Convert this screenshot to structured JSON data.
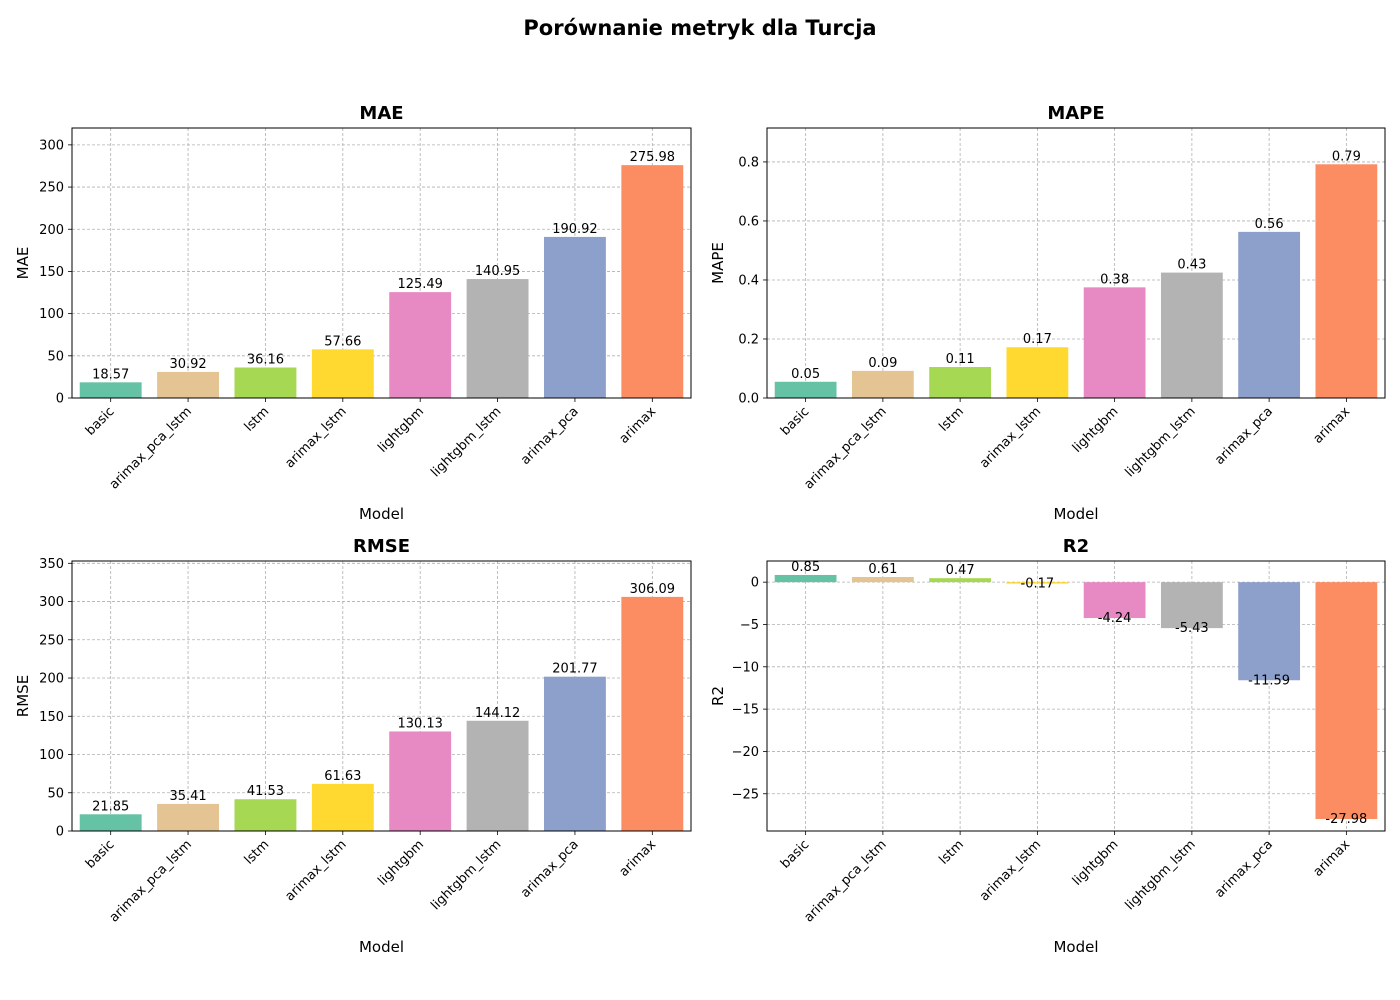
{
  "title": "Porównanie metryk dla Turcja",
  "colors": [
    "#66c2a5",
    "#e5c494",
    "#a6d854",
    "#ffd92f",
    "#e78ac3",
    "#b3b3b3",
    "#8da0cb",
    "#fc8d62"
  ],
  "chart_data": [
    {
      "type": "bar",
      "title": "MAE",
      "xlabel": "Model",
      "ylabel": "MAE",
      "categories": [
        "basic",
        "arimax_pca_lstm",
        "lstm",
        "arimax_lstm",
        "lightgbm",
        "lightgbm_lstm",
        "arimax_pca",
        "arimax"
      ],
      "values": [
        18.57,
        30.92,
        36.16,
        57.66,
        125.49,
        140.95,
        190.92,
        275.98
      ],
      "labels": [
        "18.57",
        "30.92",
        "36.16",
        "57.66",
        "125.49",
        "140.95",
        "190.92",
        "275.98"
      ],
      "ylim": [
        0,
        320
      ],
      "yticks": [
        0,
        50,
        100,
        150,
        200,
        250,
        300
      ],
      "ytick_labels": [
        "0",
        "50",
        "100",
        "150",
        "200",
        "250",
        "300"
      ],
      "grid": true
    },
    {
      "type": "bar",
      "title": "MAPE",
      "xlabel": "Model",
      "ylabel": "MAPE",
      "categories": [
        "basic",
        "arimax_pca_lstm",
        "lstm",
        "arimax_lstm",
        "lightgbm",
        "lightgbm_lstm",
        "arimax_pca",
        "arimax"
      ],
      "values": [
        0.055,
        0.092,
        0.105,
        0.172,
        0.375,
        0.425,
        0.563,
        0.792
      ],
      "labels": [
        "0.05",
        "0.09",
        "0.11",
        "0.17",
        "0.38",
        "0.43",
        "0.56",
        "0.79"
      ],
      "ylim": [
        0,
        0.915
      ],
      "yticks": [
        0,
        0.2,
        0.4,
        0.6,
        0.8
      ],
      "ytick_labels": [
        "0.0",
        "0.2",
        "0.4",
        "0.6",
        "0.8"
      ],
      "grid": true
    },
    {
      "type": "bar",
      "title": "RMSE",
      "xlabel": "Model",
      "ylabel": "RMSE",
      "categories": [
        "basic",
        "arimax_pca_lstm",
        "lstm",
        "arimax_lstm",
        "lightgbm",
        "lightgbm_lstm",
        "arimax_pca",
        "arimax"
      ],
      "values": [
        21.85,
        35.41,
        41.53,
        61.63,
        130.13,
        144.12,
        201.77,
        306.09
      ],
      "labels": [
        "21.85",
        "35.41",
        "41.53",
        "61.63",
        "130.13",
        "144.12",
        "201.77",
        "306.09"
      ],
      "ylim": [
        0,
        353
      ],
      "yticks": [
        0,
        50,
        100,
        150,
        200,
        250,
        300,
        350
      ],
      "ytick_labels": [
        "0",
        "50",
        "100",
        "150",
        "200",
        "250",
        "300",
        "350"
      ],
      "grid": true
    },
    {
      "type": "bar",
      "title": "R2",
      "xlabel": "Model",
      "ylabel": "R2",
      "categories": [
        "basic",
        "arimax_pca_lstm",
        "lstm",
        "arimax_lstm",
        "lightgbm",
        "lightgbm_lstm",
        "arimax_pca",
        "arimax"
      ],
      "values": [
        0.85,
        0.61,
        0.47,
        -0.17,
        -4.24,
        -5.43,
        -11.59,
        -27.98
      ],
      "labels": [
        "0.85",
        "0.61",
        "0.47",
        "-0.17",
        "-4.24",
        "-5.43",
        "-11.59",
        "-27.98"
      ],
      "ylim": [
        -29.4,
        2.5
      ],
      "yticks": [
        0,
        -5,
        -10,
        -15,
        -20,
        -25
      ],
      "ytick_labels": [
        "0",
        "−5",
        "−10",
        "−15",
        "−20",
        "−25"
      ],
      "grid": true
    }
  ]
}
